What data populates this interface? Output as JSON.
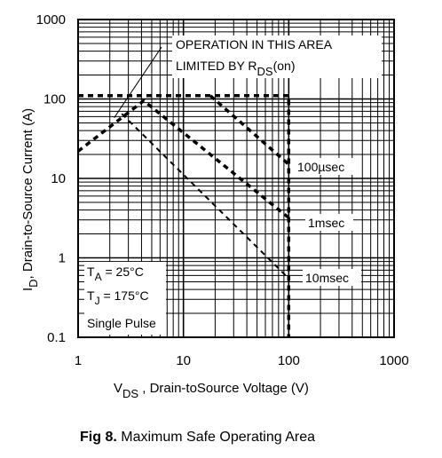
{
  "figure": {
    "number": "Fig 8.",
    "title": "Maximum Safe Operating Area"
  },
  "chart_data": {
    "type": "line",
    "title": "Maximum Safe Operating Area",
    "x_scale": "log",
    "y_scale": "log",
    "xlim": [
      1,
      1000
    ],
    "ylim": [
      0.1,
      1000
    ],
    "x_ticks": [
      "1",
      "10",
      "100",
      "1000"
    ],
    "y_ticks": [
      "0.1",
      "1",
      "10",
      "100",
      "1000"
    ],
    "xlabel": {
      "prefix": "V",
      "sub": "DS",
      "rest": " , Drain-toSource Voltage (V)"
    },
    "ylabel": {
      "prefix": "I",
      "sub": "D",
      "rest": ",  Drain-to-Source Current (A)"
    },
    "grid": true,
    "series": [
      {
        "name": "100µsec",
        "style": "dashed-bold",
        "points": [
          [
            18,
            110
          ],
          [
            100,
            15
          ]
        ]
      },
      {
        "name": "1msec",
        "style": "dashed-bold",
        "points": [
          [
            1,
            22
          ],
          [
            4.2,
            95
          ],
          [
            100,
            3.2
          ]
        ]
      },
      {
        "name": "10msec",
        "style": "dashed-thin",
        "points": [
          [
            2.6,
            65
          ],
          [
            100,
            0.55
          ]
        ]
      },
      {
        "name": "",
        "style": "dashed-bold",
        "points": [
          [
            1,
            110
          ],
          [
            100,
            110
          ],
          [
            100,
            0.1
          ]
        ]
      }
    ],
    "rds_on_note": {
      "line1": "OPERATION IN THIS AREA",
      "line2_prefix": "LIMITED BY R",
      "line2_sub": "DS",
      "line2_suffix": "(on)",
      "pointer_from": [
        6.2,
        450
      ],
      "pointer_to": [
        2.2,
        58
      ]
    },
    "conditions": {
      "ta_prefix": "T",
      "ta_sub": "A",
      "ta_value": " = 25°C",
      "tj_prefix": "T",
      "tj_sub": "J",
      "tj_value": " = 175°C",
      "pulse": "Single Pulse"
    }
  }
}
